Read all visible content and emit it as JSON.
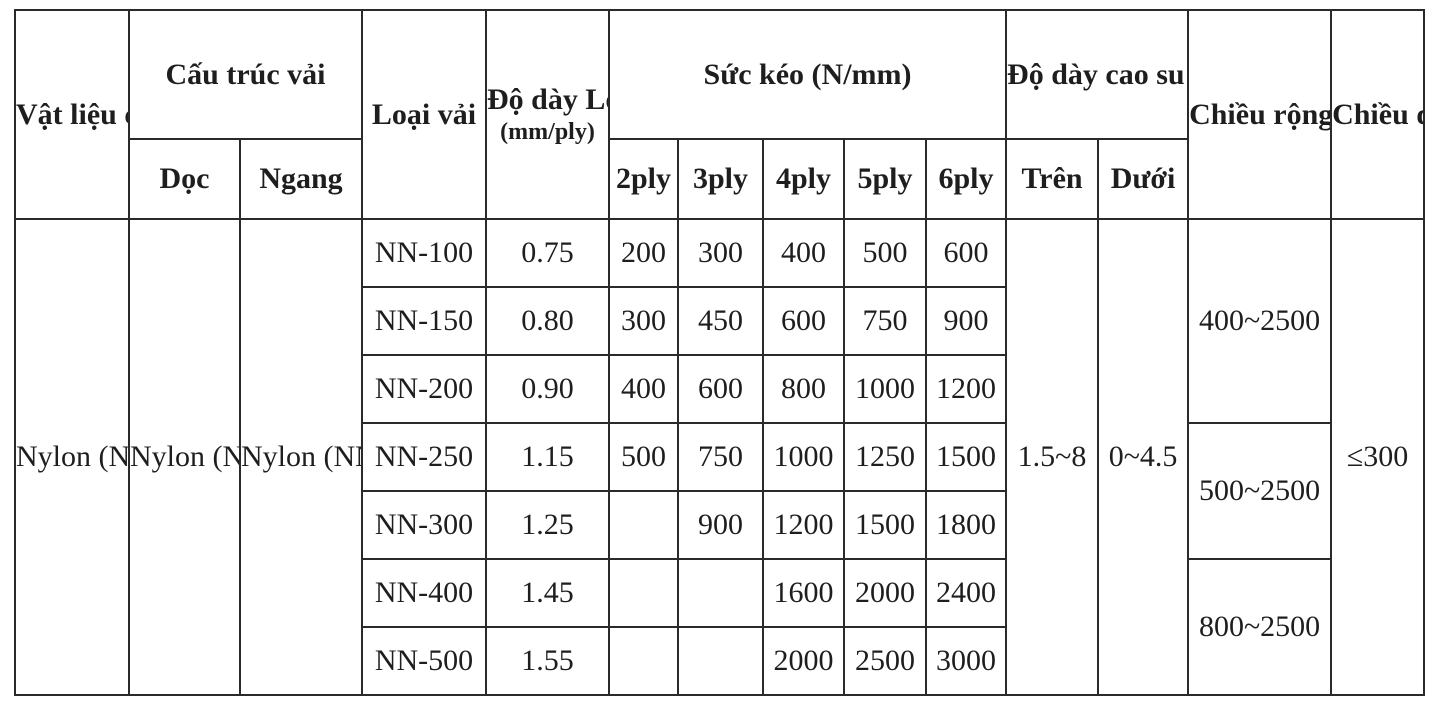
{
  "headers": {
    "vat_lieu": "Vật liệu chính",
    "cau_truc": "Cấu trúc vải",
    "doc": "Dọc",
    "ngang": "Ngang",
    "loai_vai": "Loại vải",
    "do_day_title": "Độ dày Loại vải",
    "do_day_unit": "(mm/ply)",
    "suc_keo": "Sức kéo (N/mm)",
    "plies": [
      "2ply",
      "3ply",
      "4ply",
      "5ply",
      "6ply"
    ],
    "cao_su": "Độ dày cao su bao phủ",
    "tren": "Trên",
    "duoi": "Dưới",
    "chieu_rong": "Chiều rộng (mm)",
    "chieu_dai": "Chiều dài (mm)"
  },
  "material": "Nylon (NN)",
  "doc_value": "Nylon (NN)",
  "ngang_value": "Nylon (NN)",
  "rows": [
    {
      "type": "NN-100",
      "thickness": "0.75",
      "p2": "200",
      "p3": "300",
      "p4": "400",
      "p5": "500",
      "p6": "600"
    },
    {
      "type": "NN-150",
      "thickness": "0.80",
      "p2": "300",
      "p3": "450",
      "p4": "600",
      "p5": "750",
      "p6": "900"
    },
    {
      "type": "NN-200",
      "thickness": "0.90",
      "p2": "400",
      "p3": "600",
      "p4": "800",
      "p5": "1000",
      "p6": "1200"
    },
    {
      "type": "NN-250",
      "thickness": "1.15",
      "p2": "500",
      "p3": "750",
      "p4": "1000",
      "p5": "1250",
      "p6": "1500"
    },
    {
      "type": "NN-300",
      "thickness": "1.25",
      "p2": "",
      "p3": "900",
      "p4": "1200",
      "p5": "1500",
      "p6": "1800"
    },
    {
      "type": "NN-400",
      "thickness": "1.45",
      "p2": "",
      "p3": "",
      "p4": "1600",
      "p5": "2000",
      "p6": "2400"
    },
    {
      "type": "NN-500",
      "thickness": "1.55",
      "p2": "",
      "p3": "",
      "p4": "2000",
      "p5": "2500",
      "p6": "3000"
    }
  ],
  "tren_value": "1.5~8",
  "duoi_value": "0~4.5",
  "widths": [
    "400~2500",
    "500~2500",
    "800~2500"
  ],
  "length": "≤300"
}
